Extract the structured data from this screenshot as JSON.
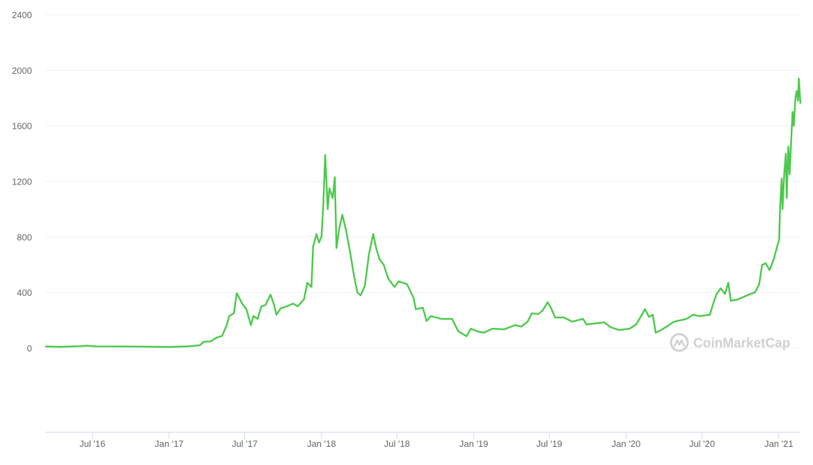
{
  "chart_data": {
    "type": "line",
    "xlabel": "",
    "ylabel": "",
    "ylim": [
      0,
      2400
    ],
    "yticks": [
      0,
      400,
      800,
      1200,
      1600,
      2000,
      2400
    ],
    "ytick_labels": [
      "0",
      "400",
      "800",
      "1200",
      "1600",
      "2000",
      "2400"
    ],
    "xticks": [
      {
        "date": "2016-07-01",
        "label": "Jul '16"
      },
      {
        "date": "2017-01-01",
        "label": "Jan '17"
      },
      {
        "date": "2017-07-01",
        "label": "Jul '17"
      },
      {
        "date": "2018-01-01",
        "label": "Jan '18"
      },
      {
        "date": "2018-07-01",
        "label": "Jul '18"
      },
      {
        "date": "2019-01-01",
        "label": "Jan '19"
      },
      {
        "date": "2019-07-01",
        "label": "Jul '19"
      },
      {
        "date": "2020-01-01",
        "label": "Jan '20"
      },
      {
        "date": "2020-07-01",
        "label": "Jul '20"
      },
      {
        "date": "2021-01-01",
        "label": "Jan '21"
      }
    ],
    "xlim": [
      "2016-03-10",
      "2021-02-22"
    ],
    "grid": true,
    "line_color": "#4cc94c",
    "series": [
      {
        "points": [
          [
            "2016-03-10",
            11
          ],
          [
            "2016-04-15",
            9
          ],
          [
            "2016-06-01",
            13
          ],
          [
            "2016-06-18",
            17
          ],
          [
            "2016-07-10",
            12
          ],
          [
            "2016-09-01",
            11
          ],
          [
            "2016-11-01",
            10
          ],
          [
            "2017-01-01",
            8
          ],
          [
            "2017-02-15",
            12
          ],
          [
            "2017-03-15",
            20
          ],
          [
            "2017-03-25",
            45
          ],
          [
            "2017-04-10",
            48
          ],
          [
            "2017-04-25",
            75
          ],
          [
            "2017-05-08",
            88
          ],
          [
            "2017-05-18",
            160
          ],
          [
            "2017-05-25",
            230
          ],
          [
            "2017-06-05",
            250
          ],
          [
            "2017-06-12",
            395
          ],
          [
            "2017-06-18",
            360
          ],
          [
            "2017-06-25",
            320
          ],
          [
            "2017-07-05",
            280
          ],
          [
            "2017-07-16",
            165
          ],
          [
            "2017-07-22",
            230
          ],
          [
            "2017-08-01",
            210
          ],
          [
            "2017-08-10",
            300
          ],
          [
            "2017-08-20",
            310
          ],
          [
            "2017-09-01",
            385
          ],
          [
            "2017-09-10",
            305
          ],
          [
            "2017-09-15",
            240
          ],
          [
            "2017-09-25",
            285
          ],
          [
            "2017-10-10",
            300
          ],
          [
            "2017-10-25",
            320
          ],
          [
            "2017-11-05",
            300
          ],
          [
            "2017-11-20",
            350
          ],
          [
            "2017-11-28",
            470
          ],
          [
            "2017-12-08",
            440
          ],
          [
            "2017-12-12",
            730
          ],
          [
            "2017-12-20",
            820
          ],
          [
            "2017-12-26",
            760
          ],
          [
            "2018-01-01",
            800
          ],
          [
            "2018-01-05",
            1000
          ],
          [
            "2018-01-10",
            1390
          ],
          [
            "2018-01-16",
            1000
          ],
          [
            "2018-01-20",
            1150
          ],
          [
            "2018-01-28",
            1080
          ],
          [
            "2018-02-02",
            1230
          ],
          [
            "2018-02-06",
            720
          ],
          [
            "2018-02-12",
            850
          ],
          [
            "2018-02-20",
            960
          ],
          [
            "2018-02-28",
            860
          ],
          [
            "2018-03-10",
            700
          ],
          [
            "2018-03-20",
            520
          ],
          [
            "2018-03-28",
            400
          ],
          [
            "2018-04-05",
            380
          ],
          [
            "2018-04-15",
            450
          ],
          [
            "2018-04-25",
            680
          ],
          [
            "2018-05-05",
            820
          ],
          [
            "2018-05-12",
            720
          ],
          [
            "2018-05-20",
            640
          ],
          [
            "2018-05-30",
            600
          ],
          [
            "2018-06-10",
            500
          ],
          [
            "2018-06-25",
            440
          ],
          [
            "2018-07-05",
            480
          ],
          [
            "2018-07-25",
            460
          ],
          [
            "2018-08-10",
            360
          ],
          [
            "2018-08-15",
            280
          ],
          [
            "2018-09-01",
            290
          ],
          [
            "2018-09-10",
            195
          ],
          [
            "2018-09-20",
            230
          ],
          [
            "2018-10-15",
            210
          ],
          [
            "2018-11-10",
            210
          ],
          [
            "2018-11-25",
            120
          ],
          [
            "2018-12-15",
            85
          ],
          [
            "2018-12-25",
            140
          ],
          [
            "2019-01-10",
            120
          ],
          [
            "2019-01-25",
            110
          ],
          [
            "2019-02-15",
            140
          ],
          [
            "2019-03-15",
            135
          ],
          [
            "2019-04-10",
            165
          ],
          [
            "2019-04-25",
            155
          ],
          [
            "2019-05-10",
            190
          ],
          [
            "2019-05-20",
            250
          ],
          [
            "2019-06-05",
            245
          ],
          [
            "2019-06-15",
            270
          ],
          [
            "2019-06-27",
            330
          ],
          [
            "2019-07-05",
            290
          ],
          [
            "2019-07-15",
            220
          ],
          [
            "2019-08-05",
            220
          ],
          [
            "2019-08-25",
            190
          ],
          [
            "2019-09-20",
            210
          ],
          [
            "2019-09-28",
            170
          ],
          [
            "2019-10-25",
            180
          ],
          [
            "2019-11-10",
            185
          ],
          [
            "2019-11-25",
            150
          ],
          [
            "2019-12-15",
            130
          ],
          [
            "2020-01-10",
            140
          ],
          [
            "2020-01-25",
            170
          ],
          [
            "2020-02-10",
            250
          ],
          [
            "2020-02-15",
            280
          ],
          [
            "2020-02-25",
            225
          ],
          [
            "2020-03-05",
            240
          ],
          [
            "2020-03-12",
            110
          ],
          [
            "2020-03-25",
            130
          ],
          [
            "2020-04-10",
            160
          ],
          [
            "2020-04-25",
            190
          ],
          [
            "2020-05-10",
            200
          ],
          [
            "2020-05-25",
            210
          ],
          [
            "2020-06-10",
            240
          ],
          [
            "2020-06-25",
            230
          ],
          [
            "2020-07-20",
            240
          ],
          [
            "2020-07-28",
            320
          ],
          [
            "2020-08-05",
            390
          ],
          [
            "2020-08-15",
            430
          ],
          [
            "2020-08-25",
            390
          ],
          [
            "2020-09-02",
            470
          ],
          [
            "2020-09-08",
            340
          ],
          [
            "2020-09-25",
            350
          ],
          [
            "2020-10-10",
            370
          ],
          [
            "2020-10-25",
            390
          ],
          [
            "2020-11-05",
            400
          ],
          [
            "2020-11-15",
            460
          ],
          [
            "2020-11-22",
            600
          ],
          [
            "2020-12-01",
            610
          ],
          [
            "2020-12-10",
            560
          ],
          [
            "2020-12-20",
            640
          ],
          [
            "2020-12-29",
            740
          ],
          [
            "2021-01-02",
            780
          ],
          [
            "2021-01-04",
            1000
          ],
          [
            "2021-01-08",
            1220
          ],
          [
            "2021-01-10",
            1000
          ],
          [
            "2021-01-14",
            1250
          ],
          [
            "2021-01-18",
            1400
          ],
          [
            "2021-01-20",
            1080
          ],
          [
            "2021-01-24",
            1450
          ],
          [
            "2021-01-27",
            1250
          ],
          [
            "2021-02-03",
            1700
          ],
          [
            "2021-02-06",
            1600
          ],
          [
            "2021-02-10",
            1800
          ],
          [
            "2021-02-13",
            1850
          ],
          [
            "2021-02-16",
            1780
          ],
          [
            "2021-02-18",
            1940
          ],
          [
            "2021-02-21",
            1800
          ],
          [
            "2021-02-22",
            1760
          ]
        ]
      }
    ]
  },
  "watermark": {
    "text": "CoinMarketCap",
    "icon": "coinmarketcap-logo-icon"
  }
}
